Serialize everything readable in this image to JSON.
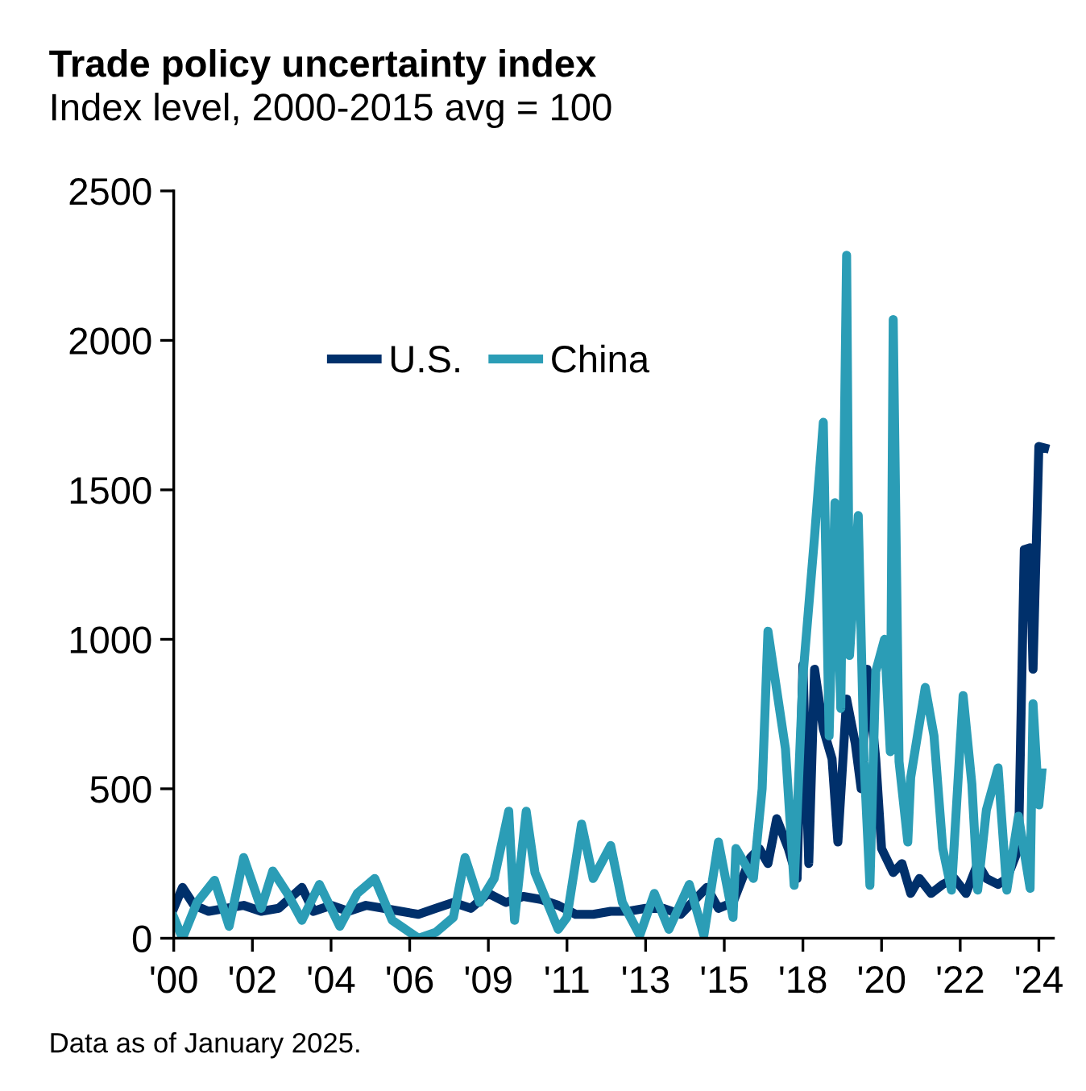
{
  "chart_data": {
    "type": "line",
    "title": "Trade policy uncertainty index",
    "subtitle": "Index level, 2000-2015 avg = 100",
    "annotations": [
      "Data as of January 2025."
    ],
    "xlim": [
      "2000-01",
      "2025-03"
    ],
    "ylim": [
      0,
      2500
    ],
    "yticks": [
      0,
      500,
      1000,
      1500,
      2000,
      2500
    ],
    "xticks": [
      {
        "value": "2000-01",
        "label": "'00"
      },
      {
        "value": "2002-04",
        "label": "'02"
      },
      {
        "value": "2004-07",
        "label": "'04"
      },
      {
        "value": "2006-10",
        "label": "'06"
      },
      {
        "value": "2009-01",
        "label": "'09"
      },
      {
        "value": "2011-04",
        "label": "'11"
      },
      {
        "value": "2013-07",
        "label": "'13"
      },
      {
        "value": "2015-10",
        "label": "'15"
      },
      {
        "value": "2018-01",
        "label": "'18"
      },
      {
        "value": "2020-04",
        "label": "'20"
      },
      {
        "value": "2022-07",
        "label": "'22"
      },
      {
        "value": "2024-10",
        "label": "'24"
      }
    ],
    "grid": false,
    "legend": "top",
    "marker": "none",
    "line_style": "solid",
    "series": [
      {
        "name": "U.S.",
        "color": "#00306b",
        "x": [
          "2000-01",
          "2000-04",
          "2000-08",
          "2001-01",
          "2001-07",
          "2002-01",
          "2002-07",
          "2003-01",
          "2003-09",
          "2004-01",
          "2004-07",
          "2005-01",
          "2005-07",
          "2006-01",
          "2006-07",
          "2007-01",
          "2007-07",
          "2008-01",
          "2008-07",
          "2009-01",
          "2009-07",
          "2010-01",
          "2010-07",
          "2011-01",
          "2011-07",
          "2012-01",
          "2012-07",
          "2013-01",
          "2013-07",
          "2014-01",
          "2014-07",
          "2015-04",
          "2015-08",
          "2016-01",
          "2016-07",
          "2016-10",
          "2017-01",
          "2017-04",
          "2017-08",
          "2017-11",
          "2018-01",
          "2018-03",
          "2018-05",
          "2018-08",
          "2018-11",
          "2019-01",
          "2019-04",
          "2019-07",
          "2019-09",
          "2019-11",
          "2020-02",
          "2020-04",
          "2020-08",
          "2020-11",
          "2021-02",
          "2021-05",
          "2021-09",
          "2022-01",
          "2022-05",
          "2022-09",
          "2023-01",
          "2023-04",
          "2023-08",
          "2023-11",
          "2024-03",
          "2024-05",
          "2024-07",
          "2024-08",
          "2024-10",
          "2024-12"
        ],
        "values": [
          100,
          170,
          110,
          90,
          100,
          110,
          90,
          100,
          170,
          90,
          110,
          90,
          110,
          100,
          90,
          80,
          100,
          120,
          100,
          150,
          120,
          140,
          130,
          110,
          80,
          80,
          90,
          90,
          100,
          100,
          80,
          170,
          100,
          120,
          270,
          300,
          250,
          400,
          300,
          200,
          914,
          250,
          900,
          700,
          600,
          322,
          800,
          650,
          500,
          900,
          600,
          300,
          220,
          250,
          150,
          200,
          150,
          180,
          200,
          150,
          250,
          200,
          180,
          200,
          300,
          1300,
          1306,
          900,
          1645,
          1640
        ]
      },
      {
        "name": "China",
        "color": "#2b9db6",
        "x": [
          "2000-01",
          "2000-04",
          "2000-09",
          "2001-03",
          "2001-08",
          "2002-01",
          "2002-07",
          "2002-11",
          "2003-04",
          "2003-09",
          "2004-03",
          "2004-10",
          "2005-04",
          "2005-10",
          "2006-04",
          "2007-01",
          "2007-07",
          "2008-01",
          "2008-05",
          "2008-10",
          "2009-03",
          "2009-08",
          "2009-10",
          "2010-02",
          "2010-05",
          "2011-01",
          "2011-04",
          "2011-09",
          "2012-01",
          "2012-07",
          "2012-11",
          "2013-05",
          "2013-10",
          "2014-03",
          "2014-10",
          "2015-03",
          "2015-08",
          "2016-01",
          "2016-02",
          "2016-08",
          "2016-11",
          "2017-01",
          "2017-07",
          "2017-10",
          "2018-01",
          "2018-05",
          "2018-08",
          "2018-10",
          "2018-12",
          "2019-02",
          "2019-04",
          "2019-05",
          "2019-08",
          "2019-10",
          "2019-12",
          "2020-02",
          "2020-05",
          "2020-07",
          "2020-08",
          "2020-10",
          "2021-01",
          "2021-02",
          "2021-07",
          "2021-10",
          "2022-01",
          "2022-04",
          "2022-08",
          "2022-11",
          "2023-01",
          "2023-04",
          "2023-08",
          "2023-11",
          "2024-03",
          "2024-07",
          "2024-08",
          "2024-10",
          "2024-11"
        ],
        "values": [
          70,
          0,
          120,
          194,
          40,
          270,
          100,
          225,
          150,
          60,
          180,
          40,
          150,
          200,
          60,
          0,
          20,
          70,
          270,
          120,
          200,
          425,
          60,
          425,
          220,
          30,
          70,
          382,
          200,
          310,
          120,
          10,
          150,
          30,
          180,
          10,
          322,
          70,
          300,
          200,
          500,
          1027,
          634,
          177,
          876,
          1344,
          1726,
          677,
          1457,
          769,
          2285,
          946,
          1414,
          591,
          177,
          892,
          1000,
          624,
          2070,
          591,
          322,
          538,
          839,
          677,
          301,
          161,
          812,
          516,
          161,
          430,
          570,
          161,
          408,
          167,
          785,
          446,
          554
        ]
      }
    ]
  }
}
